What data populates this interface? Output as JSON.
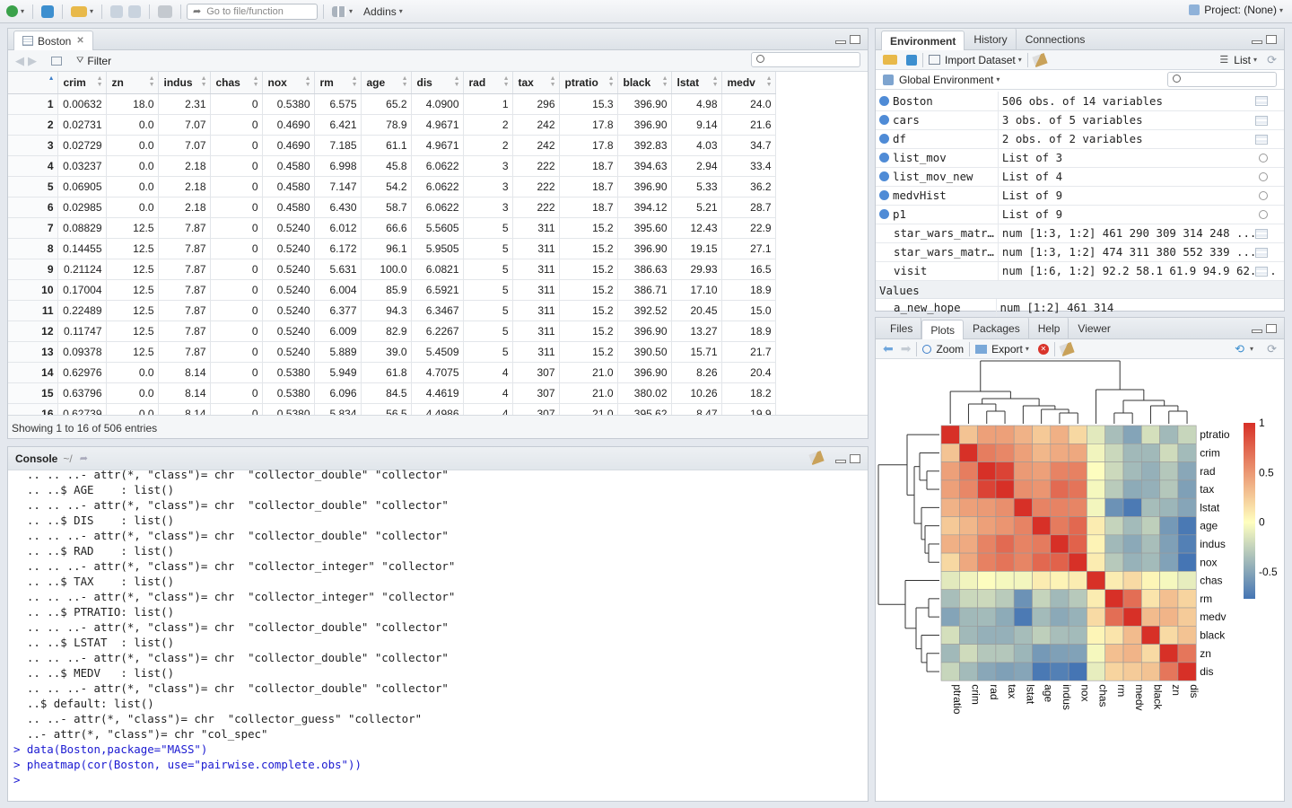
{
  "toolbar": {
    "goto_placeholder": "Go to file/function",
    "addins_label": "Addins",
    "project_label": "Project: (None)"
  },
  "source_pane": {
    "tab_label": "Boston",
    "filter_label": "Filter",
    "columns": [
      "crim",
      "zn",
      "indus",
      "chas",
      "nox",
      "rm",
      "age",
      "dis",
      "rad",
      "tax",
      "ptratio",
      "black",
      "lstat",
      "medv"
    ],
    "rows": [
      [
        "1",
        "0.00632",
        "18.0",
        "2.31",
        "0",
        "0.5380",
        "6.575",
        "65.2",
        "4.0900",
        "1",
        "296",
        "15.3",
        "396.90",
        "4.98",
        "24.0"
      ],
      [
        "2",
        "0.02731",
        "0.0",
        "7.07",
        "0",
        "0.4690",
        "6.421",
        "78.9",
        "4.9671",
        "2",
        "242",
        "17.8",
        "396.90",
        "9.14",
        "21.6"
      ],
      [
        "3",
        "0.02729",
        "0.0",
        "7.07",
        "0",
        "0.4690",
        "7.185",
        "61.1",
        "4.9671",
        "2",
        "242",
        "17.8",
        "392.83",
        "4.03",
        "34.7"
      ],
      [
        "4",
        "0.03237",
        "0.0",
        "2.18",
        "0",
        "0.4580",
        "6.998",
        "45.8",
        "6.0622",
        "3",
        "222",
        "18.7",
        "394.63",
        "2.94",
        "33.4"
      ],
      [
        "5",
        "0.06905",
        "0.0",
        "2.18",
        "0",
        "0.4580",
        "7.147",
        "54.2",
        "6.0622",
        "3",
        "222",
        "18.7",
        "396.90",
        "5.33",
        "36.2"
      ],
      [
        "6",
        "0.02985",
        "0.0",
        "2.18",
        "0",
        "0.4580",
        "6.430",
        "58.7",
        "6.0622",
        "3",
        "222",
        "18.7",
        "394.12",
        "5.21",
        "28.7"
      ],
      [
        "7",
        "0.08829",
        "12.5",
        "7.87",
        "0",
        "0.5240",
        "6.012",
        "66.6",
        "5.5605",
        "5",
        "311",
        "15.2",
        "395.60",
        "12.43",
        "22.9"
      ],
      [
        "8",
        "0.14455",
        "12.5",
        "7.87",
        "0",
        "0.5240",
        "6.172",
        "96.1",
        "5.9505",
        "5",
        "311",
        "15.2",
        "396.90",
        "19.15",
        "27.1"
      ],
      [
        "9",
        "0.21124",
        "12.5",
        "7.87",
        "0",
        "0.5240",
        "5.631",
        "100.0",
        "6.0821",
        "5",
        "311",
        "15.2",
        "386.63",
        "29.93",
        "16.5"
      ],
      [
        "10",
        "0.17004",
        "12.5",
        "7.87",
        "0",
        "0.5240",
        "6.004",
        "85.9",
        "6.5921",
        "5",
        "311",
        "15.2",
        "386.71",
        "17.10",
        "18.9"
      ],
      [
        "11",
        "0.22489",
        "12.5",
        "7.87",
        "0",
        "0.5240",
        "6.377",
        "94.3",
        "6.3467",
        "5",
        "311",
        "15.2",
        "392.52",
        "20.45",
        "15.0"
      ],
      [
        "12",
        "0.11747",
        "12.5",
        "7.87",
        "0",
        "0.5240",
        "6.009",
        "82.9",
        "6.2267",
        "5",
        "311",
        "15.2",
        "396.90",
        "13.27",
        "18.9"
      ],
      [
        "13",
        "0.09378",
        "12.5",
        "7.87",
        "0",
        "0.5240",
        "5.889",
        "39.0",
        "5.4509",
        "5",
        "311",
        "15.2",
        "390.50",
        "15.71",
        "21.7"
      ],
      [
        "14",
        "0.62976",
        "0.0",
        "8.14",
        "0",
        "0.5380",
        "5.949",
        "61.8",
        "4.7075",
        "4",
        "307",
        "21.0",
        "396.90",
        "8.26",
        "20.4"
      ],
      [
        "15",
        "0.63796",
        "0.0",
        "8.14",
        "0",
        "0.5380",
        "6.096",
        "84.5",
        "4.4619",
        "4",
        "307",
        "21.0",
        "380.02",
        "10.26",
        "18.2"
      ],
      [
        "16",
        "0.62739",
        "0.0",
        "8.14",
        "0",
        "0.5380",
        "5.834",
        "56.5",
        "4.4986",
        "4",
        "307",
        "21.0",
        "395.62",
        "8.47",
        "19.9"
      ]
    ],
    "showing_text": "Showing 1 to 16 of 506 entries"
  },
  "console": {
    "tab_label": "Console",
    "path": "~/",
    "lines": [
      "  .. .. ..- attr(*, \"class\")= chr  \"collector_double\" \"collector\"",
      "  .. ..$ AGE    : list()",
      "  .. .. ..- attr(*, \"class\")= chr  \"collector_double\" \"collector\"",
      "  .. ..$ DIS    : list()",
      "  .. .. ..- attr(*, \"class\")= chr  \"collector_double\" \"collector\"",
      "  .. ..$ RAD    : list()",
      "  .. .. ..- attr(*, \"class\")= chr  \"collector_integer\" \"collector\"",
      "  .. ..$ TAX    : list()",
      "  .. .. ..- attr(*, \"class\")= chr  \"collector_integer\" \"collector\"",
      "  .. ..$ PTRATIO: list()",
      "  .. .. ..- attr(*, \"class\")= chr  \"collector_double\" \"collector\"",
      "  .. ..$ LSTAT  : list()",
      "  .. .. ..- attr(*, \"class\")= chr  \"collector_double\" \"collector\"",
      "  .. ..$ MEDV   : list()",
      "  .. .. ..- attr(*, \"class\")= chr  \"collector_double\" \"collector\"",
      "  ..$ default: list()",
      "  .. ..- attr(*, \"class\")= chr  \"collector_guess\" \"collector\"",
      "  ..- attr(*, \"class\")= chr \"col_spec\""
    ],
    "commands": [
      "> data(Boston,package=\"MASS\")",
      "> pheatmap(cor(Boston, use=\"pairwise.complete.obs\"))",
      "> "
    ]
  },
  "env_pane": {
    "tabs": [
      "Environment",
      "History",
      "Connections"
    ],
    "import_label": "Import Dataset",
    "list_label": "List",
    "global_env_label": "Global Environment",
    "data": [
      {
        "name": "Boston",
        "value": "506 obs. of 14 variables",
        "bullet": true,
        "icon": "grid-icon"
      },
      {
        "name": "cars",
        "value": "3 obs. of 5 variables",
        "bullet": true,
        "icon": "grid-icon"
      },
      {
        "name": "df",
        "value": "2 obs. of 2 variables",
        "bullet": true,
        "icon": "grid-icon"
      },
      {
        "name": "list_mov",
        "value": "List of 3",
        "bullet": true,
        "icon": "magnifier-icon"
      },
      {
        "name": "list_mov_new",
        "value": "List of 4",
        "bullet": true,
        "icon": "magnifier-icon"
      },
      {
        "name": "medvHist",
        "value": "List of 9",
        "bullet": true,
        "icon": "magnifier-icon"
      },
      {
        "name": "p1",
        "value": "List of 9",
        "bullet": true,
        "icon": "magnifier-icon"
      },
      {
        "name": "star_wars_matr…",
        "value": "num [1:3, 1:2] 461 290 309 314 248 ...",
        "bullet": false,
        "icon": "grid-icon"
      },
      {
        "name": "star_wars_matr…",
        "value": "num [1:3, 1:2] 474 311 380 552 339 ...",
        "bullet": false,
        "icon": "grid-icon"
      },
      {
        "name": "visit",
        "value": "num [1:6, 1:2] 92.2 58.1 61.9 94.9 62....",
        "bullet": false,
        "icon": "grid-icon"
      }
    ],
    "values_header": "Values",
    "values": [
      {
        "name": "a_new_hope",
        "value": "num [1:2] 461 314"
      }
    ]
  },
  "plots_pane": {
    "tabs": [
      "Files",
      "Plots",
      "Packages",
      "Help",
      "Viewer"
    ],
    "zoom_label": "Zoom",
    "export_label": "Export"
  },
  "chart_data": {
    "type": "heatmap",
    "row_labels": [
      "ptratio",
      "crim",
      "rad",
      "tax",
      "lstat",
      "age",
      "indus",
      "nox",
      "chas",
      "rm",
      "medv",
      "black",
      "zn",
      "dis"
    ],
    "col_labels": [
      "ptratio",
      "crim",
      "rad",
      "tax",
      "lstat",
      "age",
      "indus",
      "nox",
      "chas",
      "rm",
      "medv",
      "black",
      "zn",
      "dis"
    ],
    "legend_ticks": [
      "1",
      "0.5",
      "0",
      "-0.5"
    ],
    "scale_range": [
      -0.77,
      1
    ],
    "colors": {
      "low": "#4575b4",
      "mid": "#ffffbf",
      "high": "#d73027"
    },
    "values": [
      [
        1.0,
        0.29,
        0.46,
        0.46,
        0.37,
        0.26,
        0.38,
        0.19,
        -0.12,
        -0.36,
        -0.51,
        -0.18,
        -0.39,
        -0.23
      ],
      [
        0.29,
        1.0,
        0.63,
        0.58,
        0.46,
        0.35,
        0.41,
        0.42,
        -0.06,
        -0.22,
        -0.39,
        -0.39,
        -0.2,
        -0.38
      ],
      [
        0.46,
        0.63,
        1.0,
        0.91,
        0.49,
        0.46,
        0.6,
        0.61,
        -0.01,
        -0.21,
        -0.38,
        -0.44,
        -0.31,
        -0.49
      ],
      [
        0.46,
        0.58,
        0.91,
        1.0,
        0.54,
        0.51,
        0.72,
        0.67,
        -0.04,
        -0.29,
        -0.47,
        -0.44,
        -0.31,
        -0.53
      ],
      [
        0.37,
        0.46,
        0.49,
        0.54,
        1.0,
        0.6,
        0.6,
        0.59,
        -0.05,
        -0.61,
        -0.74,
        -0.37,
        -0.41,
        -0.5
      ],
      [
        0.26,
        0.35,
        0.46,
        0.51,
        0.6,
        1.0,
        0.64,
        0.73,
        0.09,
        -0.24,
        -0.38,
        -0.27,
        -0.57,
        -0.75
      ],
      [
        0.38,
        0.41,
        0.6,
        0.72,
        0.6,
        0.64,
        1.0,
        0.76,
        0.06,
        -0.39,
        -0.48,
        -0.36,
        -0.53,
        -0.71
      ],
      [
        0.19,
        0.42,
        0.61,
        0.67,
        0.59,
        0.73,
        0.76,
        1.0,
        0.09,
        -0.3,
        -0.43,
        -0.38,
        -0.52,
        -0.77
      ],
      [
        -0.12,
        -0.06,
        -0.01,
        -0.04,
        -0.05,
        0.09,
        0.06,
        0.09,
        1.0,
        0.09,
        0.18,
        0.05,
        -0.04,
        -0.1
      ],
      [
        -0.36,
        -0.22,
        -0.21,
        -0.29,
        -0.61,
        -0.24,
        -0.39,
        -0.3,
        0.09,
        1.0,
        0.7,
        0.13,
        0.31,
        0.21
      ],
      [
        -0.51,
        -0.39,
        -0.38,
        -0.47,
        -0.74,
        -0.38,
        -0.48,
        -0.43,
        0.18,
        0.7,
        1.0,
        0.33,
        0.36,
        0.25
      ],
      [
        -0.18,
        -0.39,
        -0.44,
        -0.44,
        -0.37,
        -0.27,
        -0.36,
        -0.38,
        0.05,
        0.13,
        0.33,
        1.0,
        0.18,
        0.29
      ],
      [
        -0.39,
        -0.2,
        -0.31,
        -0.31,
        -0.41,
        -0.57,
        -0.53,
        -0.52,
        -0.04,
        0.31,
        0.36,
        0.18,
        1.0,
        0.66
      ],
      [
        -0.23,
        -0.38,
        -0.49,
        -0.53,
        -0.5,
        -0.75,
        -0.71,
        -0.77,
        -0.1,
        0.21,
        0.25,
        0.29,
        0.66,
        1.0
      ]
    ]
  }
}
